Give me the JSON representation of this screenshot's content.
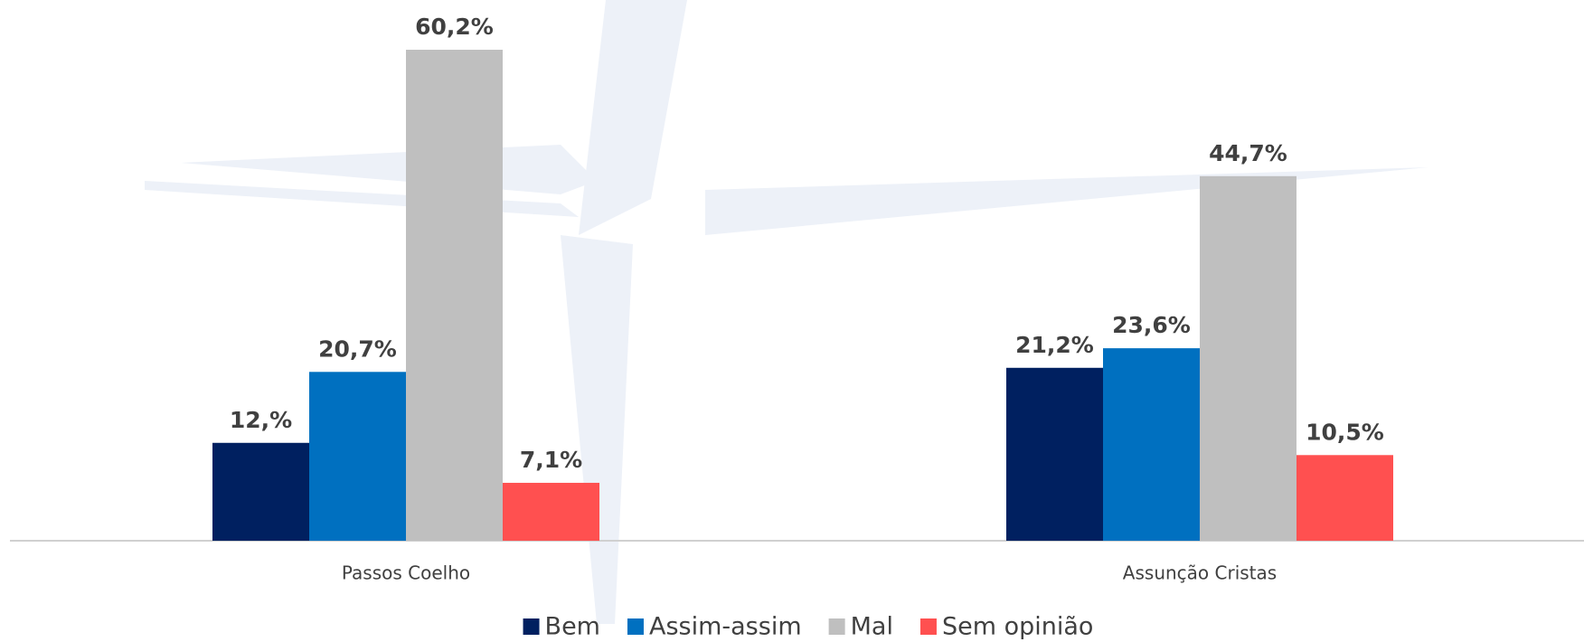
{
  "chart_data": {
    "type": "bar",
    "categories": [
      "Passos Coelho",
      "Assunção Cristas"
    ],
    "series": [
      {
        "name": "Bem",
        "color": "#002060",
        "values": [
          12,
          21.2
        ],
        "value_labels": [
          "12,%",
          "21,2%"
        ]
      },
      {
        "name": "Assim-assim",
        "color": "#0070c0",
        "values": [
          20.7,
          23.6
        ],
        "value_labels": [
          "20,7%",
          "23,6%"
        ]
      },
      {
        "name": "Mal",
        "color": "#bfbfbf",
        "values": [
          60.2,
          44.7
        ],
        "value_labels": [
          "60,2%",
          "44,7%"
        ]
      },
      {
        "name": "Sem opinião",
        "color": "#ff5050",
        "values": [
          7.1,
          10.5
        ],
        "value_labels": [
          "7,1%",
          "10,5%"
        ]
      }
    ],
    "legend": "bottom"
  }
}
